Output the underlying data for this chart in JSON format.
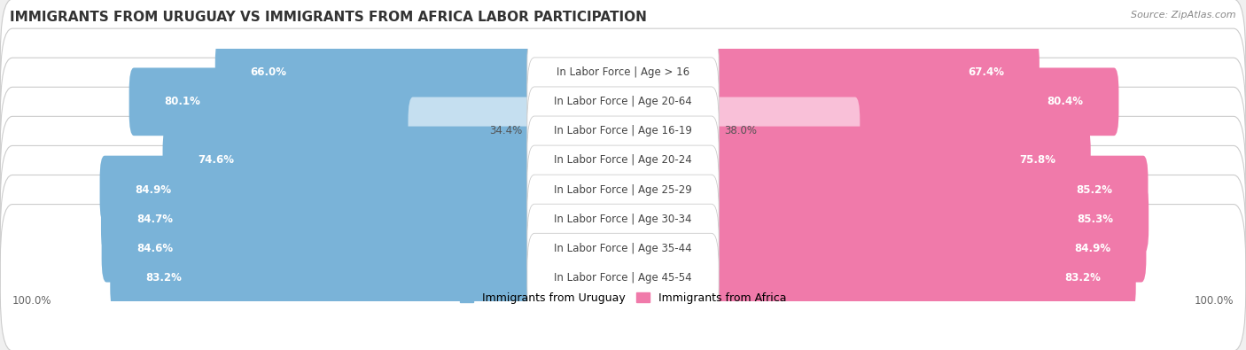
{
  "title": "IMMIGRANTS FROM URUGUAY VS IMMIGRANTS FROM AFRICA LABOR PARTICIPATION",
  "source": "Source: ZipAtlas.com",
  "categories": [
    "In Labor Force | Age > 16",
    "In Labor Force | Age 20-64",
    "In Labor Force | Age 16-19",
    "In Labor Force | Age 20-24",
    "In Labor Force | Age 25-29",
    "In Labor Force | Age 30-34",
    "In Labor Force | Age 35-44",
    "In Labor Force | Age 45-54"
  ],
  "uruguay_values": [
    66.0,
    80.1,
    34.4,
    74.6,
    84.9,
    84.7,
    84.6,
    83.2
  ],
  "africa_values": [
    67.4,
    80.4,
    38.0,
    75.8,
    85.2,
    85.3,
    84.9,
    83.2
  ],
  "uruguay_color": "#7ab3d8",
  "africa_color": "#f07aaa",
  "uruguay_color_light": "#c5dff0",
  "africa_color_light": "#f9c0d8",
  "background_color": "#f0f0f0",
  "row_bg_color": "#e8e8e8",
  "label_fontsize": 8.5,
  "title_fontsize": 11,
  "legend_fontsize": 9,
  "max_value": 100.0,
  "legend_labels": [
    "Immigrants from Uruguay",
    "Immigrants from Africa"
  ]
}
